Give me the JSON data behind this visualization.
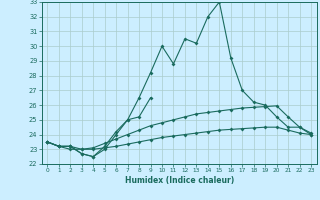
{
  "title": "",
  "xlabel": "Humidex (Indice chaleur)",
  "bg_color": "#cceeff",
  "grid_color": "#aacccc",
  "line_color": "#1a6b5e",
  "x": [
    0,
    1,
    2,
    3,
    4,
    5,
    6,
    7,
    8,
    9,
    10,
    11,
    12,
    13,
    14,
    15,
    16,
    17,
    18,
    19,
    20,
    21,
    22,
    23
  ],
  "line1": [
    23.5,
    23.2,
    23.2,
    22.7,
    22.5,
    23.2,
    24.2,
    25.0,
    26.5,
    28.2,
    30.0,
    28.8,
    30.5,
    30.2,
    32.0,
    33.0,
    29.2,
    27.0,
    26.2,
    26.0,
    25.2,
    24.5,
    24.5,
    24.0
  ],
  "line2": [
    23.5,
    23.2,
    23.2,
    22.7,
    22.5,
    23.0,
    24.0,
    25.0,
    25.2,
    26.5,
    null,
    null,
    null,
    null,
    null,
    null,
    null,
    null,
    null,
    null,
    null,
    null,
    null,
    null
  ],
  "line3": [
    23.5,
    23.2,
    23.2,
    23.0,
    23.1,
    23.4,
    23.7,
    24.0,
    24.3,
    24.6,
    24.8,
    25.0,
    25.2,
    25.4,
    25.5,
    25.6,
    25.7,
    25.8,
    25.85,
    25.9,
    25.95,
    25.2,
    24.5,
    24.1
  ],
  "line4": [
    23.5,
    23.2,
    23.0,
    23.0,
    23.0,
    23.1,
    23.2,
    23.35,
    23.5,
    23.65,
    23.8,
    23.9,
    24.0,
    24.1,
    24.2,
    24.3,
    24.35,
    24.4,
    24.45,
    24.5,
    24.5,
    24.3,
    24.1,
    24.0
  ],
  "ylim": [
    22,
    33
  ],
  "xlim": [
    -0.5,
    23.5
  ],
  "yticks": [
    22,
    23,
    24,
    25,
    26,
    27,
    28,
    29,
    30,
    31,
    32,
    33
  ],
  "xticks": [
    0,
    1,
    2,
    3,
    4,
    5,
    6,
    7,
    8,
    9,
    10,
    11,
    12,
    13,
    14,
    15,
    16,
    17,
    18,
    19,
    20,
    21,
    22,
    23
  ]
}
